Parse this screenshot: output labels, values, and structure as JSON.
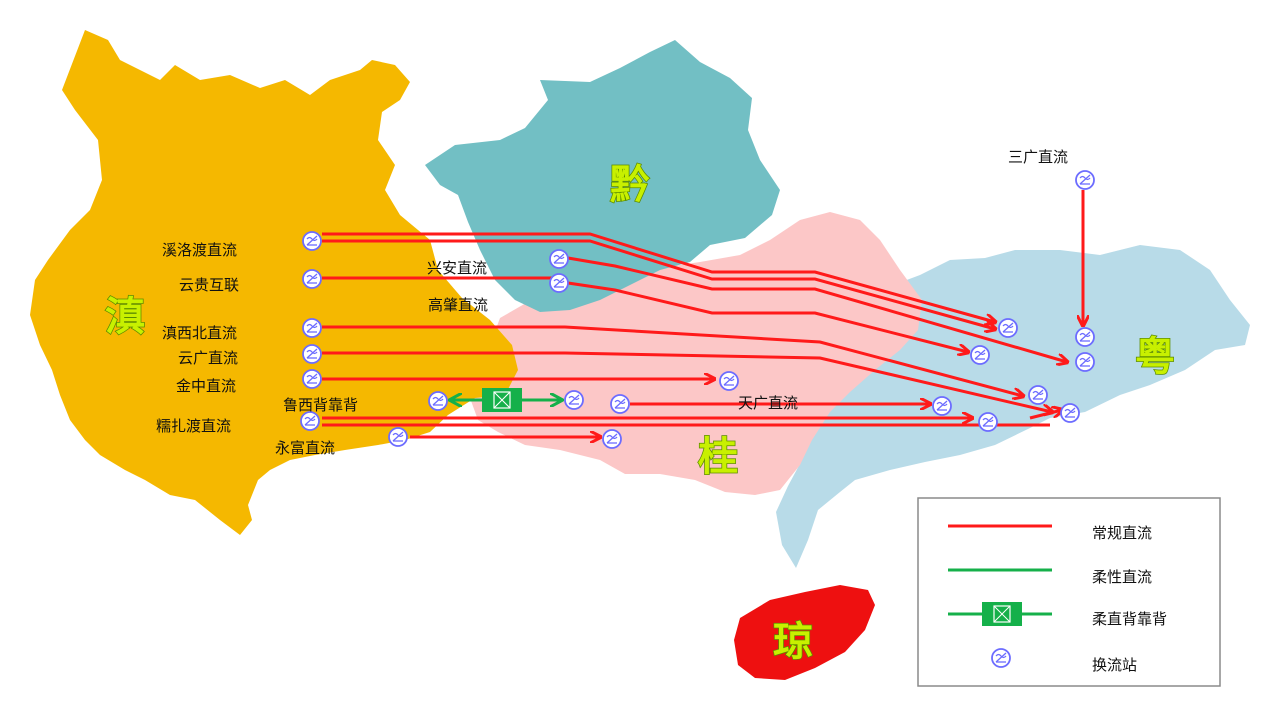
{
  "map": {
    "provinces": {
      "yunnan": "滇",
      "guizhou": "黔",
      "guangxi": "桂",
      "guangdong": "粤",
      "hainan": "琼"
    },
    "lines": {
      "xiluodu": "溪洛渡直流",
      "yungui": "云贵互联",
      "dianxibei": "滇西北直流",
      "yunguang": "云广直流",
      "jinzhong": "金中直流",
      "nuozhadu": "糯扎渡直流",
      "luxi": "鲁西背靠背",
      "yongfu": "永富直流",
      "xingan": "兴安直流",
      "gaozhao": "高肇直流",
      "tianguang": "天广直流",
      "sanguang": "三广直流"
    },
    "colors": {
      "yunnan": "#f5b800",
      "guizhou": "#72bfc4",
      "guangxi": "#fcc7c7",
      "guangdong": "#b8dbe8",
      "hainan": "#ee1010",
      "conventional_dc": "#ff1a1a",
      "flexible_dc": "#15b04a",
      "station": "#6c6cff"
    }
  },
  "legend": {
    "conventional_dc": "常规直流",
    "flexible_dc": "柔性直流",
    "flexible_btb": "柔直背靠背",
    "converter_station": "换流站"
  }
}
